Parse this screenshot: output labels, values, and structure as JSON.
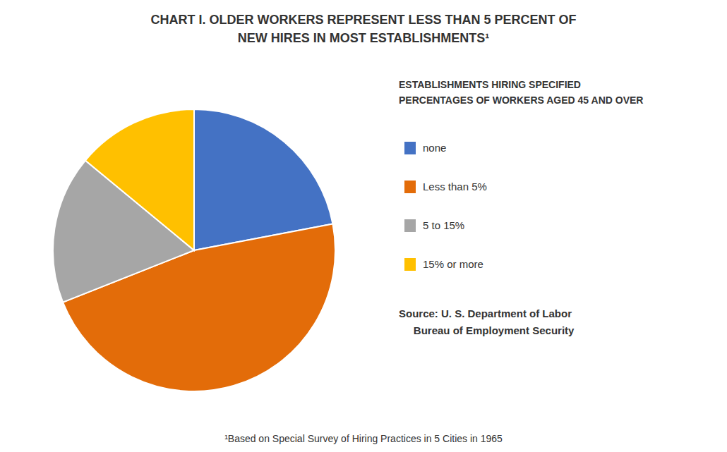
{
  "chart_data": {
    "type": "pie",
    "title": [
      "CHART I. OLDER WORKERS REPRESENT LESS THAN 5 PERCENT OF",
      "NEW HIRES IN MOST ESTABLISHMENTS¹"
    ],
    "categories": [
      "none",
      "Less than 5%",
      "5 to 15%",
      "15% or more"
    ],
    "values": [
      22,
      47,
      17,
      14
    ],
    "colors": [
      "#4472C4",
      "#E36C09",
      "#A6A6A6",
      "#FFC000"
    ],
    "legend": "right",
    "legend_title": [
      "ESTABLISHMENTS HIRING SPECIFIED",
      "PERCENTAGES OF WORKERS AGED 45 AND OVER"
    ],
    "source": [
      "Source: U. S. Department of Labor",
      "     Bureau of Employment Security"
    ],
    "footnote": "¹Based on Special Survey of Hiring Practices in 5 Cities in 1965"
  }
}
